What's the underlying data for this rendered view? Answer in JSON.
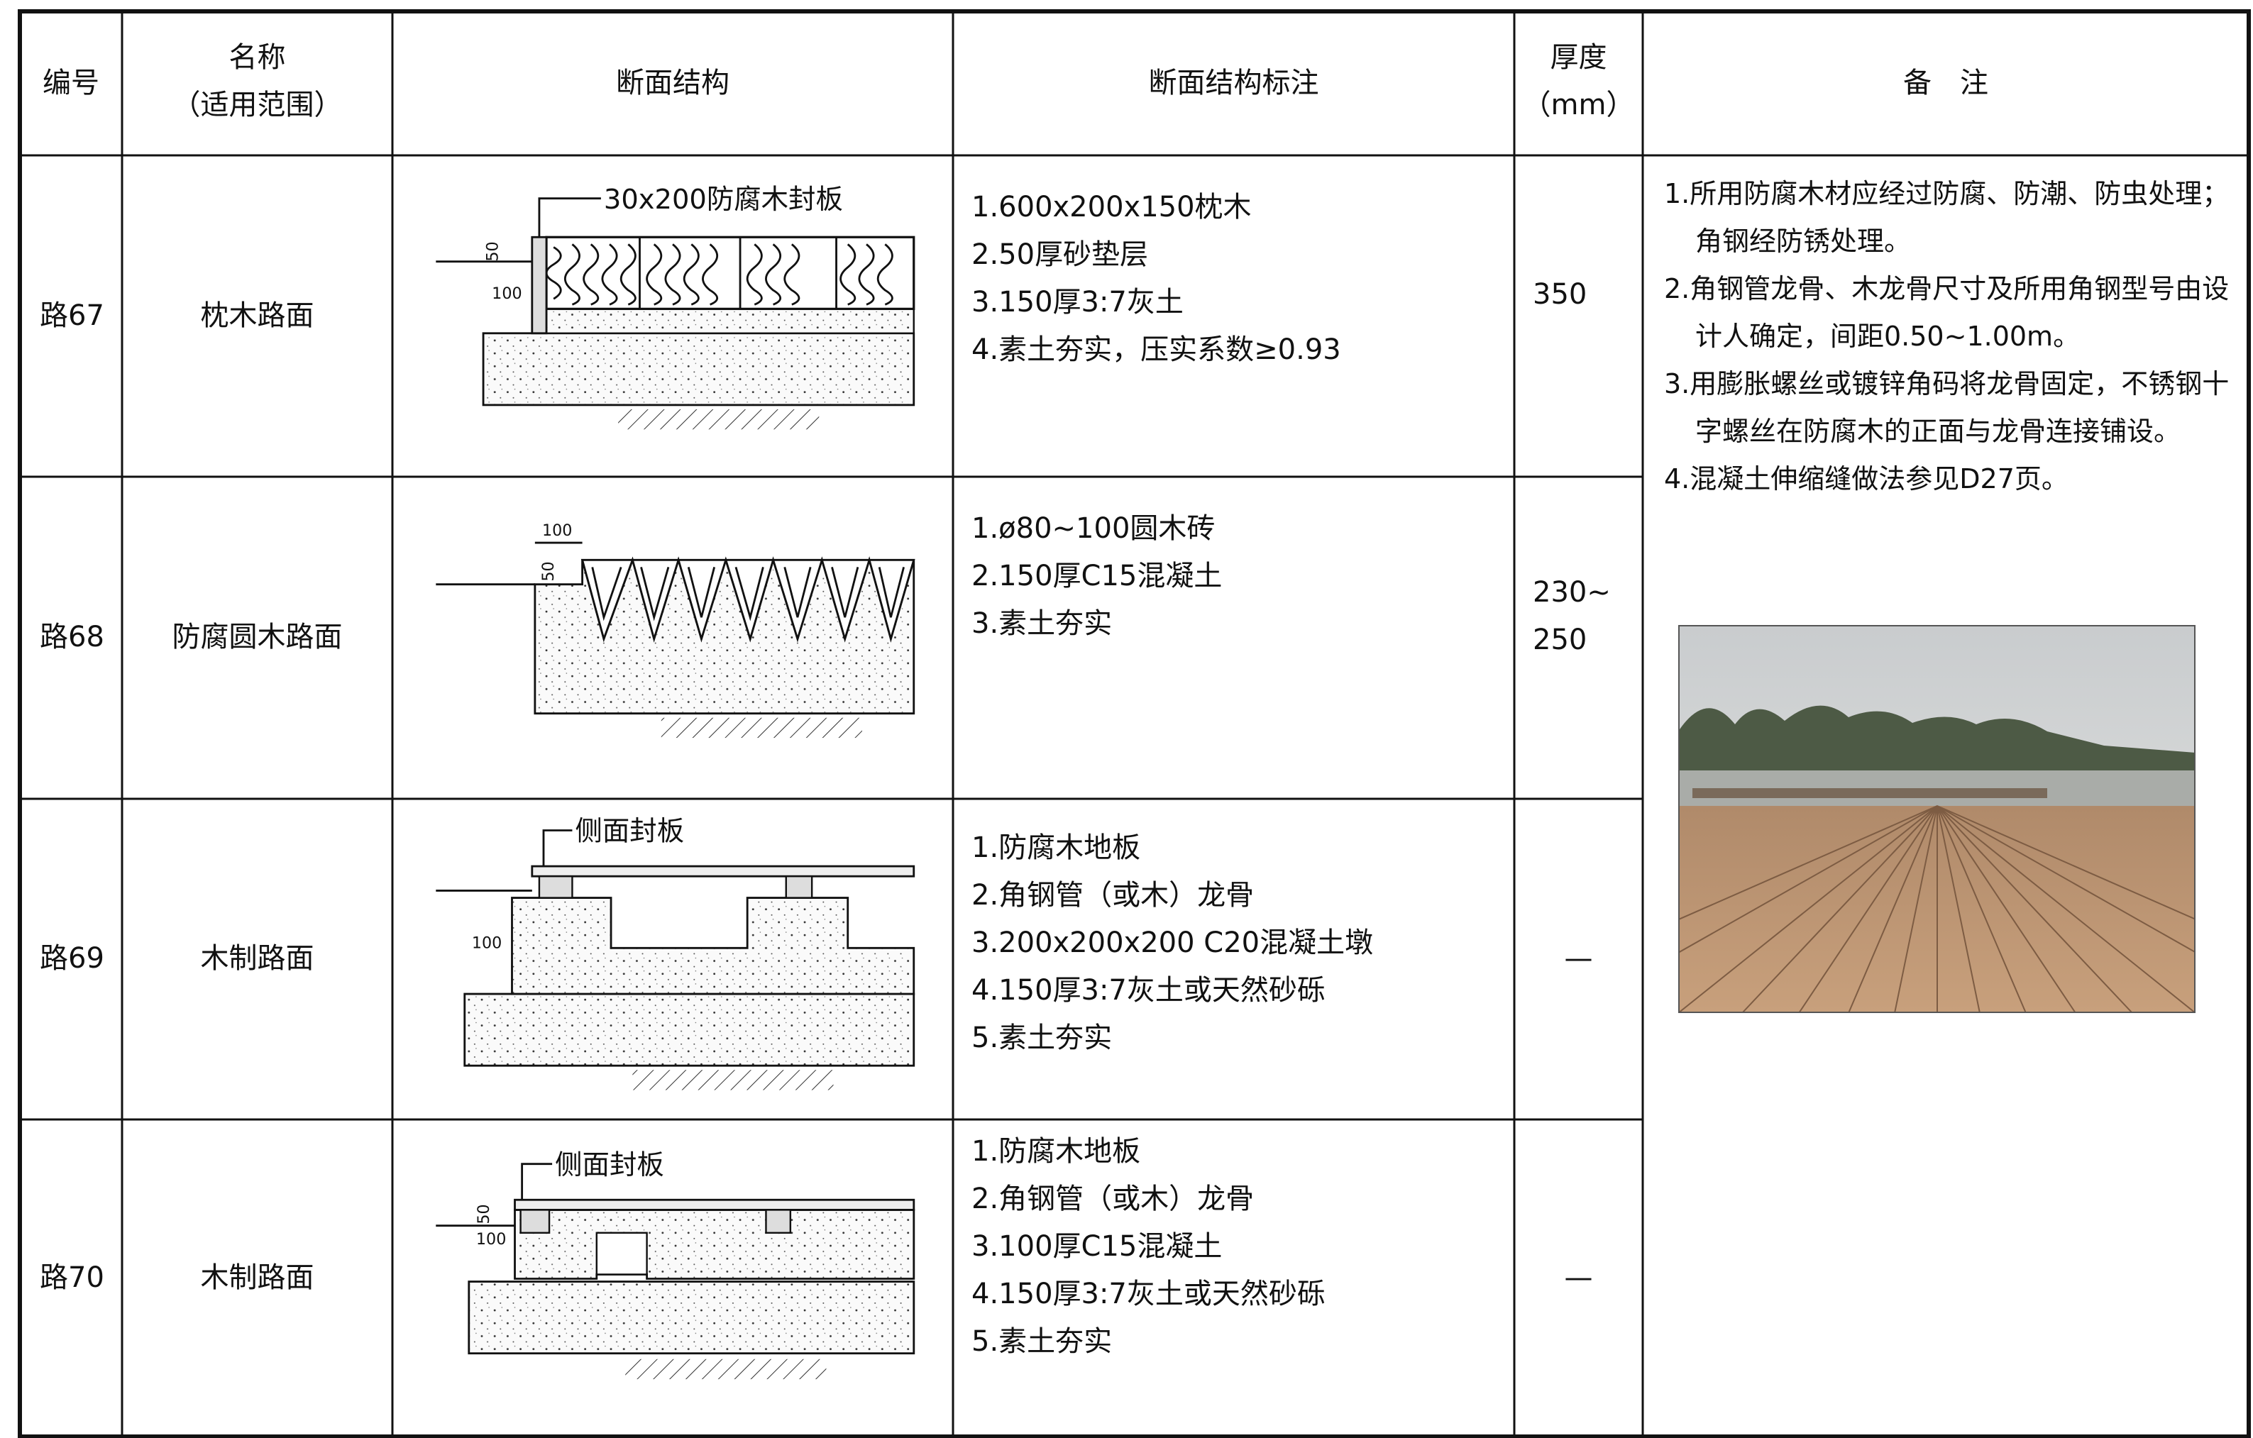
{
  "header": {
    "id": "编号",
    "name": "名称",
    "name_scope": "（适用范围）",
    "section": "断面结构",
    "section_notes": "断面结构标注",
    "thickness": "厚度",
    "thickness_unit": "（mm）",
    "remarks": "备　注"
  },
  "rows": [
    {
      "id": "路67",
      "name": "枕木路面",
      "diagram_labels": [
        "30x200防腐木封板",
        "50",
        "100"
      ],
      "layers": [
        "1.600x200x150枕木",
        "2.50厚砂垫层",
        "3.150厚3:7灰土",
        "4.素土夯实，压实系数≥0.93"
      ],
      "thickness": "350"
    },
    {
      "id": "路68",
      "name": "防腐圆木路面",
      "diagram_labels": [
        "100",
        "50"
      ],
      "layers": [
        "1.ø80~100圆木砖",
        "2.150厚C15混凝土",
        "3.素土夯实"
      ],
      "thickness": "230~\n250"
    },
    {
      "id": "路69",
      "name": "木制路面",
      "diagram_labels": [
        "侧面封板",
        "100"
      ],
      "layers": [
        "1.防腐木地板",
        "2.角钢管（或木）龙骨",
        "3.200x200x200  C20混凝土墩",
        "4.150厚3:7灰土或天然砂砾",
        "5.素土夯实"
      ],
      "thickness": "—"
    },
    {
      "id": "路70",
      "name": "木制路面",
      "diagram_labels": [
        "侧面封板",
        "50",
        "100"
      ],
      "layers": [
        "1.防腐木地板",
        "2.角钢管（或木）龙骨",
        "3.100厚C15混凝土",
        "4.150厚3:7灰土或天然砂砾",
        "5.素土夯实"
      ],
      "thickness": "—"
    }
  ],
  "notes": [
    "1.所用防腐木材应经过防腐、防潮、防虫处理；角钢经防锈处理。",
    "2.角钢管龙骨、木龙骨尺寸及所用角钢型号由设计人确定，间距0.50~1.00m。",
    "3.用膨胀螺丝或镀锌角码将龙骨固定，不锈钢十字螺丝在防腐木的正面与龙骨连接铺设。",
    "4.混凝土伸缩缝做法参见D27页。"
  ]
}
